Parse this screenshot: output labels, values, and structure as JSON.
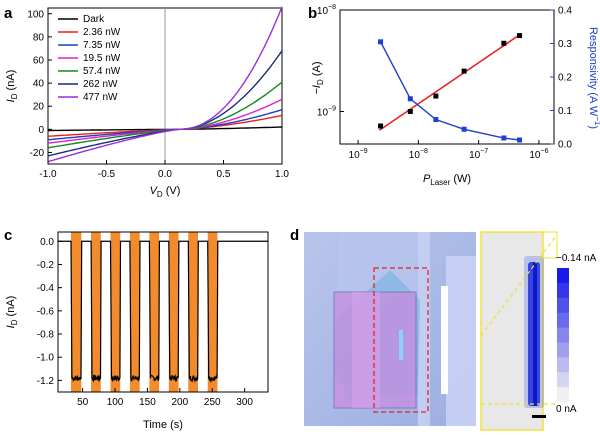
{
  "chart_data": [
    {
      "panel": "a",
      "type": "line",
      "xlabel": "V",
      "xlabel_sub": "D",
      "xunit": " (V)",
      "ylabel": "I",
      "ylabel_sub": "D",
      "yunit": " (nA)",
      "xlim": [
        -1.0,
        1.0
      ],
      "ylim": [
        -30,
        105
      ],
      "xticks": [
        "-1.0",
        "-0.5",
        "0.0",
        "0.5",
        "1.0"
      ],
      "xtick_values": [
        -1.0,
        -0.5,
        0.0,
        0.5,
        1.0
      ],
      "yticks": [
        "-20",
        "0",
        "20",
        "40",
        "60",
        "80",
        "100"
      ],
      "ytick_values": [
        -20,
        0,
        20,
        40,
        60,
        80,
        100
      ],
      "legend_position": "top-left",
      "series": [
        {
          "name": "Dark",
          "color": "#000000",
          "left": -1,
          "right": 2,
          "exp": 1.3
        },
        {
          "name": "2.36 nW",
          "color": "#e8201c",
          "left": -6,
          "right": 12,
          "exp": 1.5
        },
        {
          "name": "7.35 nW",
          "color": "#1f3fbf",
          "left": -9,
          "right": 17,
          "exp": 1.6
        },
        {
          "name": "19.5 nW",
          "color": "#e020d0",
          "left": -12,
          "right": 26,
          "exp": 1.7
        },
        {
          "name": "57.4 nW",
          "color": "#0d8f1e",
          "left": -16,
          "right": 41,
          "exp": 1.8
        },
        {
          "name": "262 nW",
          "color": "#1c2a7a",
          "left": -23,
          "right": 68,
          "exp": 1.9
        },
        {
          "name": "477 nW",
          "color": "#9a2ee0",
          "left": -28,
          "right": 106,
          "exp": 2.1
        }
      ],
      "zero_crossing_v": 0.12
    },
    {
      "panel": "b",
      "type": "scatter",
      "scale": "log-log / log-linear",
      "xlabel": "P",
      "xlabel_sub": "Laser",
      "xunit": " (W)",
      "ylabel_left": "−I",
      "ylabel_left_sub": "D",
      "ylabel_left_unit": " (A)",
      "ylabel_right": "Responsivity (A W",
      "ylabel_right_sup": "−1",
      "ylabel_right_end": ")",
      "x_range_log10": [
        -9.3,
        -5.75
      ],
      "xticks": [
        "10",
        "10",
        "10",
        "10"
      ],
      "xtick_exponents": [
        "−9",
        "−8",
        "−7",
        "−6"
      ],
      "xtick_log10": [
        -9,
        -8,
        -7,
        -6
      ],
      "left_range_log10": [
        -9.32,
        -8
      ],
      "left_ticks": [
        "10",
        "10"
      ],
      "left_tick_exponents": [
        "−9",
        "−8"
      ],
      "left_tick_log10": [
        -9,
        -8
      ],
      "right_range": [
        0,
        0.4
      ],
      "right_ticks": [
        "0.0",
        "0.1",
        "0.2",
        "0.3",
        "0.4"
      ],
      "right_tick_values": [
        0.0,
        0.1,
        0.2,
        0.3,
        0.4
      ],
      "x_power_w": [
        2.36e-09,
        7.35e-09,
        1.95e-08,
        5.74e-08,
        2.62e-07,
        4.77e-07
      ],
      "minus_id_a": [
        7.2e-10,
        1e-09,
        1.42e-09,
        2.5e-09,
        4.7e-09,
        5.6e-09
      ],
      "responsivity": [
        0.305,
        0.135,
        0.073,
        0.044,
        0.018,
        0.012
      ],
      "colors": {
        "current": "#000000",
        "fit": "#e8201c",
        "responsivity": "#1f3fd0"
      }
    },
    {
      "panel": "c",
      "type": "line",
      "xlabel": "Time (s)",
      "ylabel": "I",
      "ylabel_sub": "D",
      "yunit": " (nA)",
      "xlim": [
        12,
        336
      ],
      "ylim": [
        -1.3,
        0.08
      ],
      "xticks": [
        "50",
        "100",
        "150",
        "200",
        "250",
        "300"
      ],
      "xtick_values": [
        50,
        100,
        150,
        200,
        250,
        300
      ],
      "yticks": [
        "0.0",
        "-0.2",
        "-0.4",
        "-0.6",
        "-0.8",
        "-1.0",
        "-1.2"
      ],
      "ytick_values": [
        0.0,
        -0.2,
        -0.4,
        -0.6,
        -0.8,
        -1.0,
        -1.2
      ],
      "dark_level_na": 0.0,
      "light_level_na": -1.18,
      "light_on_intervals_s": [
        [
          32,
          48
        ],
        [
          63,
          78
        ],
        [
          93,
          108
        ],
        [
          123,
          138
        ],
        [
          153,
          168
        ],
        [
          183,
          198
        ],
        [
          213,
          228
        ],
        [
          243,
          258
        ]
      ],
      "colors": {
        "trace": "#000000",
        "light_band": "#f28a2e"
      }
    },
    {
      "panel": "d",
      "type": "image",
      "colorbar_max_label": "−0.14 nA",
      "colorbar_min_label": "0 nA",
      "colors": {
        "substrate": "#a8b8e6",
        "flake": "#c08ad8",
        "box": "#e8202c",
        "frame": "#f0e030",
        "signal": "#2030e0"
      }
    }
  ]
}
